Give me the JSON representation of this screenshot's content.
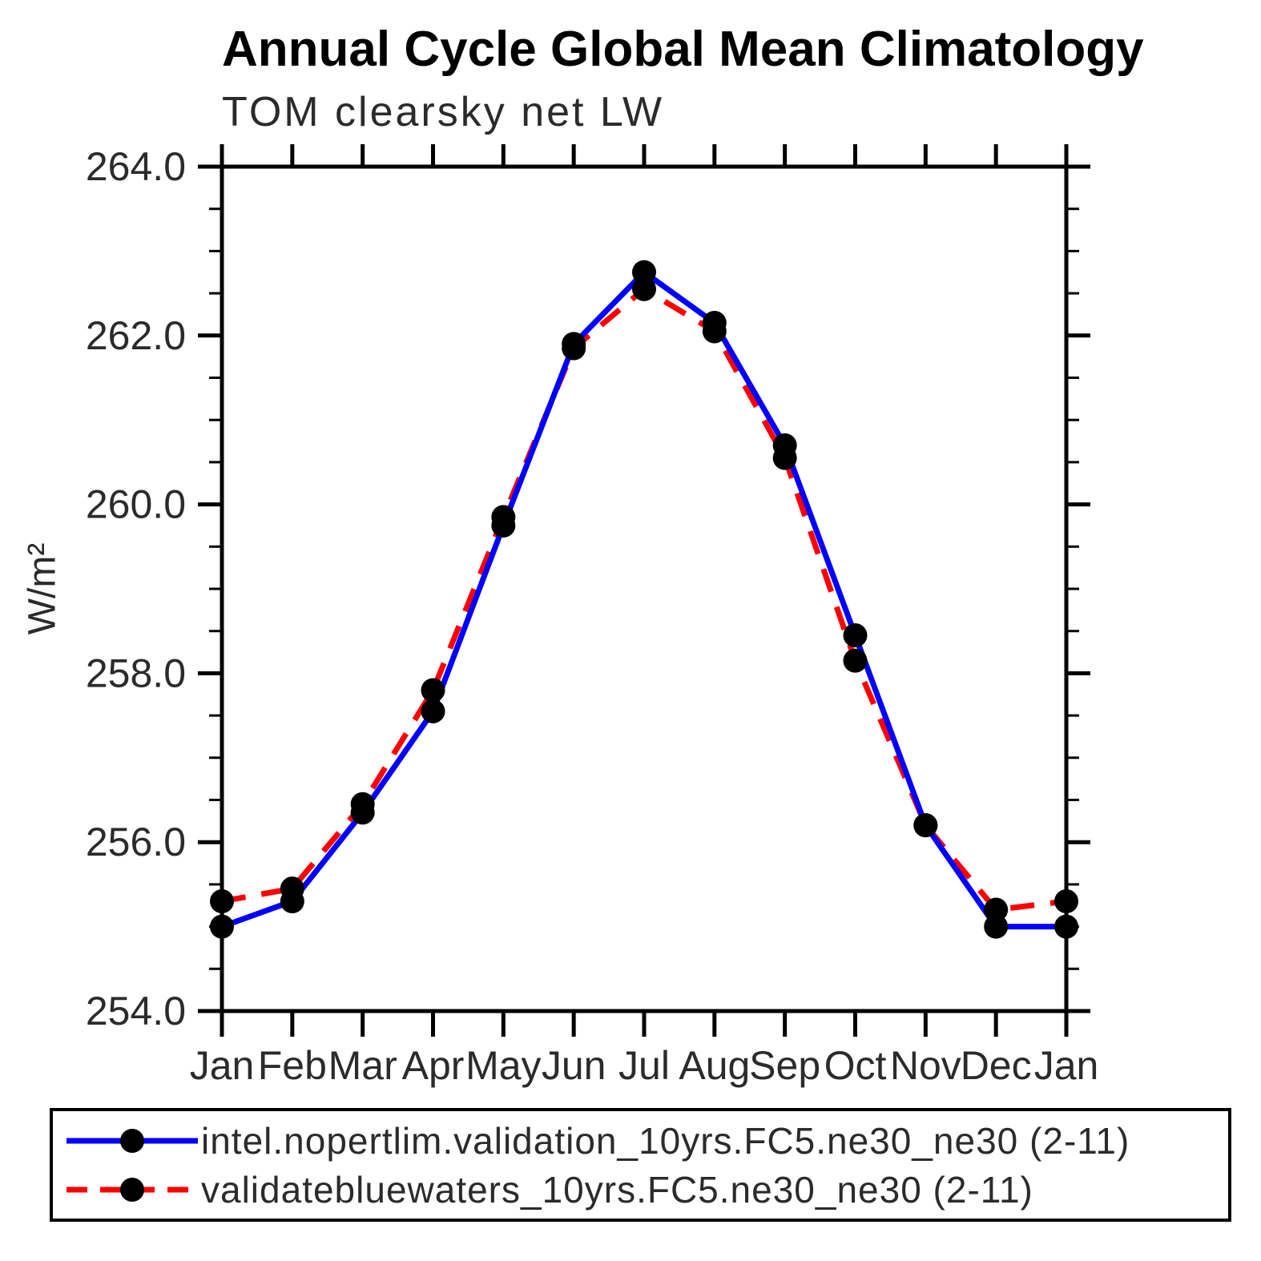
{
  "chart_data": {
    "type": "line",
    "title": "Annual Cycle Global Mean Climatology",
    "subtitle": "TOM clearsky net LW",
    "ylabel": "W/m²",
    "xlabel": "",
    "categories": [
      "Jan",
      "Feb",
      "Mar",
      "Apr",
      "May",
      "Jun",
      "Jul",
      "Aug",
      "Sep",
      "Oct",
      "Nov",
      "Dec",
      "Jan"
    ],
    "ylim": [
      254.0,
      264.0
    ],
    "ytick_major": 2.0,
    "ytick_minor": 0.5,
    "ytick_label_format_decimals": 1,
    "grid": false,
    "legend_position": "bottom",
    "marker": "filled-circle",
    "marker_color": "#000000",
    "axis_color": "#000000",
    "series": [
      {
        "name": "intel.nopertlim.validation_10yrs.FC5.ne30_ne30 (2-11)",
        "color": "#0000ff",
        "line_style": "solid",
        "values": [
          255.0,
          255.3,
          256.35,
          257.55,
          259.75,
          261.9,
          262.75,
          262.15,
          260.7,
          258.45,
          256.2,
          255.0,
          255.0
        ]
      },
      {
        "name": "validatebluewaters_10yrs.FC5.ne30_ne30 (2-11)",
        "color": "#ff0000",
        "line_style": "dashed",
        "values": [
          255.3,
          255.45,
          256.45,
          257.8,
          259.85,
          261.85,
          262.55,
          262.05,
          260.55,
          258.15,
          256.2,
          255.2,
          255.3
        ]
      }
    ]
  }
}
